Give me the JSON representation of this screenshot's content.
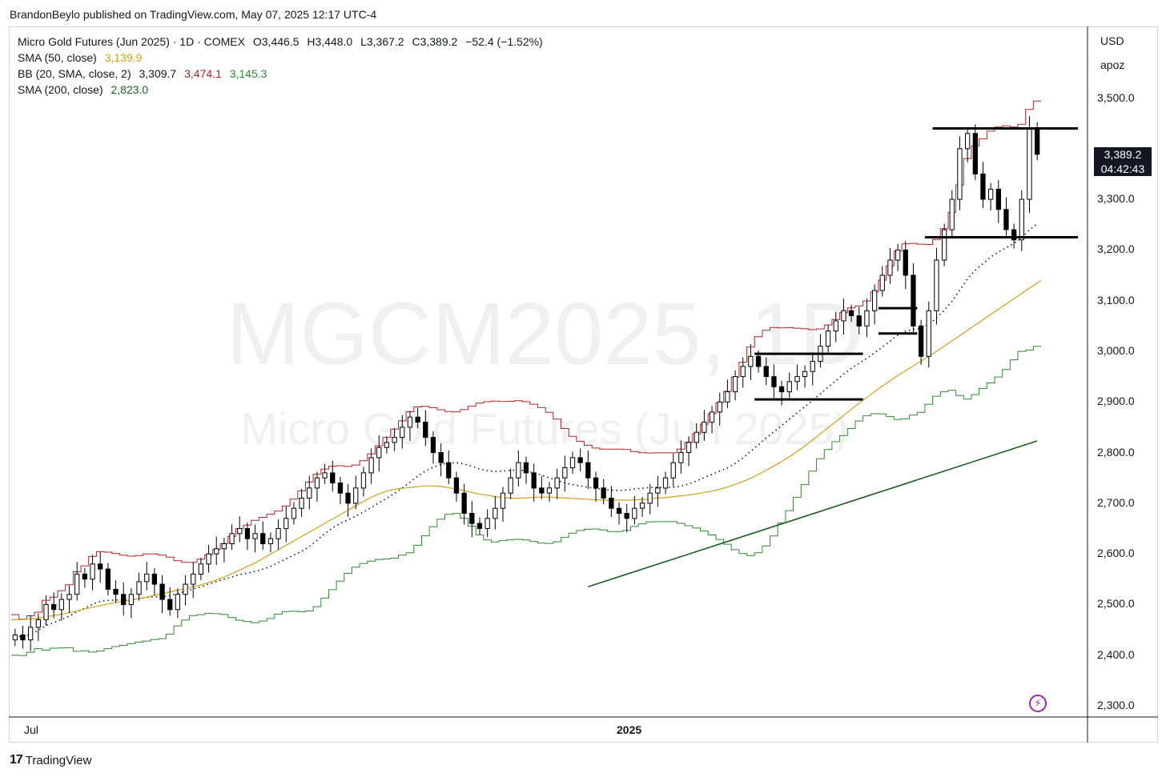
{
  "publish_line": "BrandonBeylo published on TradingView.com, May 07, 2025 12:17 UTC-4",
  "legend": {
    "symbol": "Micro Gold Futures (Jun 2025) · 1D · COMEX",
    "ohlc": {
      "o": "O3,446.5",
      "h": "H3,448.0",
      "l": "L3,367.2",
      "c": "C3,389.2",
      "chg": "−52.4 (−1.52%)"
    },
    "sma50": {
      "label": "SMA (50, close)",
      "value": "3,139.9"
    },
    "bb": {
      "label": "BB (20, SMA, close, 2)",
      "basis": "3,309.7",
      "upper": "3,474.1",
      "lower": "3,145.3"
    },
    "sma200": {
      "label": "SMA (200, close)",
      "value": "2,823.0"
    }
  },
  "watermark": {
    "ticker": "MGCM2025, 1D",
    "name": "Micro Gold Futures (Jun 2025)"
  },
  "currency": "USD",
  "scale_mode": "apoz",
  "last_price": {
    "price": "3,389.2",
    "countdown": "04:42:43"
  },
  "x_labels": [
    {
      "text": "Jul",
      "left": 30
    },
    {
      "text": "2025",
      "left": 770
    }
  ],
  "brand": "TradingView",
  "colors": {
    "upper_band": "#b22222",
    "lower_band": "#2e8b2e",
    "sma50": "#d4a017",
    "sma200": "#1b5e20",
    "candle": "#000000"
  },
  "chart_data": {
    "type": "candlestick",
    "ylim": [
      2290,
      3540
    ],
    "yticks": [
      "2,300.0",
      "2,400.0",
      "2,500.0",
      "2,600.0",
      "2,700.0",
      "2,800.0",
      "2,900.0",
      "3,000.0",
      "3,100.0",
      "3,200.0",
      "3,300.0",
      "3,500.0"
    ],
    "ytick_values": [
      2300,
      2400,
      2500,
      2600,
      2700,
      2800,
      2900,
      3000,
      3100,
      3200,
      3300,
      3500
    ],
    "close": [
      2440,
      2430,
      2455,
      2470,
      2500,
      2490,
      2510,
      2520,
      2560,
      2550,
      2580,
      2570,
      2530,
      2520,
      2500,
      2520,
      2545,
      2560,
      2540,
      2510,
      2490,
      2520,
      2540,
      2560,
      2580,
      2600,
      2610,
      2620,
      2640,
      2650,
      2630,
      2640,
      2620,
      2630,
      2650,
      2670,
      2690,
      2710,
      2730,
      2750,
      2760,
      2740,
      2720,
      2700,
      2730,
      2760,
      2790,
      2810,
      2820,
      2830,
      2850,
      2870,
      2860,
      2830,
      2800,
      2780,
      2750,
      2720,
      2680,
      2660,
      2650,
      2670,
      2690,
      2720,
      2750,
      2780,
      2760,
      2730,
      2720,
      2730,
      2750,
      2770,
      2790,
      2780,
      2750,
      2730,
      2710,
      2690,
      2680,
      2670,
      2690,
      2700,
      2720,
      2730,
      2750,
      2780,
      2800,
      2820,
      2840,
      2860,
      2880,
      2900,
      2920,
      2950,
      2970,
      2990,
      2970,
      2950,
      2930,
      2920,
      2940,
      2950,
      2960,
      2980,
      3010,
      3040,
      3060,
      3080,
      3070,
      3050,
      3080,
      3120,
      3150,
      3180,
      3200,
      3150,
      3050,
      2990,
      3080,
      3180,
      3240,
      3300,
      3400,
      3430,
      3350,
      3300,
      3320,
      3280,
      3240,
      3220,
      3300,
      3440,
      3389
    ],
    "sma50": [
      2470,
      2470,
      2471,
      2473,
      2476,
      2479,
      2482,
      2486,
      2490,
      2494,
      2498,
      2502,
      2505,
      2508,
      2511,
      2514,
      2518,
      2522,
      2526,
      2530,
      2534,
      2538,
      2543,
      2549,
      2556,
      2564,
      2572,
      2580,
      2590,
      2600,
      2610,
      2620,
      2630,
      2640,
      2650,
      2660,
      2670,
      2680,
      2690,
      2700,
      2710,
      2718,
      2724,
      2728,
      2730,
      2732,
      2734,
      2734,
      2733,
      2730,
      2727,
      2723,
      2719,
      2716,
      2713,
      2711,
      2710,
      2710,
      2711,
      2712,
      2712,
      2711,
      2710,
      2709,
      2708,
      2707,
      2706,
      2706,
      2706,
      2706,
      2707,
      2708,
      2710,
      2711,
      2713,
      2715,
      2717,
      2720,
      2723,
      2727,
      2732,
      2738,
      2745,
      2753,
      2762,
      2772,
      2782,
      2793,
      2805,
      2818,
      2832,
      2846,
      2860,
      2874,
      2888,
      2902,
      2915,
      2928,
      2940,
      2952,
      2963,
      2974,
      2985,
      2996,
      3008,
      3020,
      3032,
      3044,
      3056,
      3068,
      3080,
      3092,
      3104,
      3116,
      3128,
      3140
    ]
  }
}
